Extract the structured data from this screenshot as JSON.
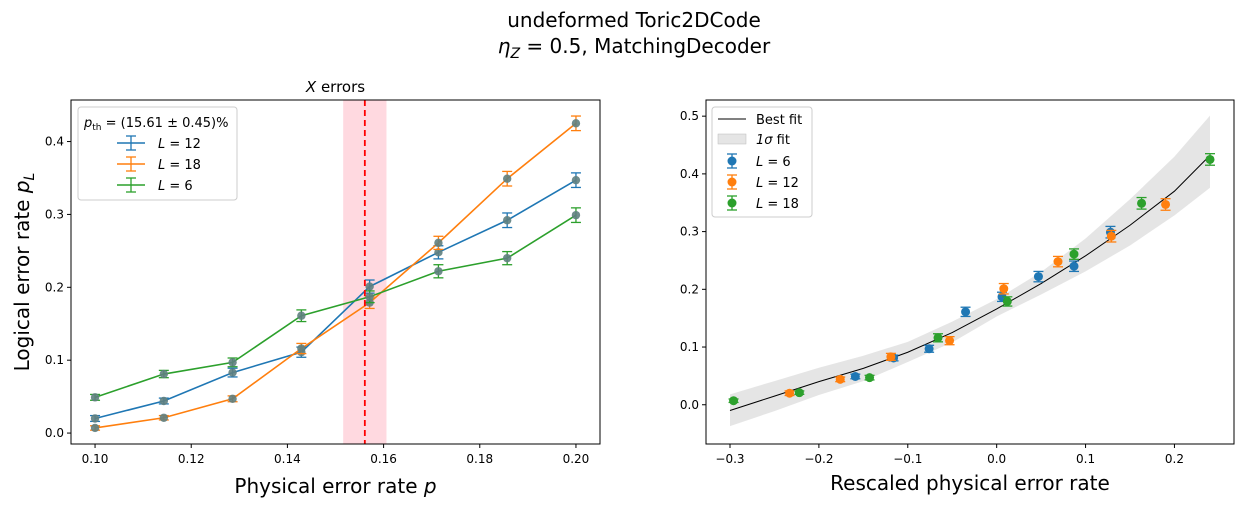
{
  "figure": {
    "title_line1": "undeformed Toric2DCode",
    "title_line2_symbol": "η",
    "title_line2_sub": "Z",
    "title_line2_rest": " = 0.5, MatchingDecoder"
  },
  "colors": {
    "blue": "#1f77b4",
    "orange": "#ff7f0e",
    "green": "#2ca02c",
    "threshold_line": "#ff0000",
    "threshold_band": "#ffc0cb",
    "fit_band": "#d3d3d3",
    "fit_line": "#000000"
  },
  "chart_data": [
    {
      "type": "line",
      "title_symbol": "X",
      "title_rest": " errors",
      "xlabel_text": "Physical error rate ",
      "xlabel_symbol": "p",
      "ylabel_text": "Logical error rate ",
      "ylabel_symbol": "p",
      "ylabel_sub": "L",
      "xlim": [
        0.095,
        0.205
      ],
      "ylim": [
        -0.015,
        0.457
      ],
      "xticks": [
        0.1,
        0.12,
        0.14,
        0.16,
        0.18,
        0.2
      ],
      "xtick_labels": [
        "0.10",
        "0.12",
        "0.14",
        "0.16",
        "0.18",
        "0.20"
      ],
      "yticks": [
        0.0,
        0.1,
        0.2,
        0.3,
        0.4
      ],
      "ytick_labels": [
        "0.0",
        "0.1",
        "0.2",
        "0.3",
        "0.4"
      ],
      "legend_position": "top-left",
      "legend_title": {
        "p": "p",
        "sub": "th",
        "rest": " = (15.61 ± 0.45)%"
      },
      "threshold": {
        "value": 0.1561,
        "lower": 0.1516,
        "upper": 0.1606
      },
      "x": [
        0.1,
        0.1143,
        0.1286,
        0.1429,
        0.1571,
        0.1714,
        0.1857,
        0.2
      ],
      "series": [
        {
          "name": "L = 12",
          "name_symbol": "L",
          "name_rest": " = 12",
          "color": "blue",
          "y": [
            0.02,
            0.044,
            0.083,
            0.111,
            0.201,
            0.248,
            0.292,
            0.347
          ],
          "err": [
            0.004,
            0.004,
            0.006,
            0.007,
            0.009,
            0.009,
            0.01,
            0.01
          ]
        },
        {
          "name": "L = 18",
          "name_symbol": "L",
          "name_rest": " = 18",
          "color": "orange",
          "y": [
            0.007,
            0.021,
            0.047,
            0.116,
            0.179,
            0.261,
            0.349,
            0.425
          ],
          "err": [
            0.003,
            0.003,
            0.004,
            0.007,
            0.008,
            0.009,
            0.01,
            0.01
          ]
        },
        {
          "name": "L = 6",
          "name_symbol": "L",
          "name_rest": " = 6",
          "color": "green",
          "y": [
            0.049,
            0.081,
            0.097,
            0.161,
            0.187,
            0.222,
            0.24,
            0.299
          ],
          "err": [
            0.004,
            0.005,
            0.006,
            0.008,
            0.008,
            0.009,
            0.009,
            0.01
          ]
        }
      ]
    },
    {
      "type": "scatter",
      "xlabel": "Rescaled physical error rate",
      "xlim": [
        -0.327,
        0.267
      ],
      "ylim": [
        -0.068,
        0.528
      ],
      "xticks": [
        -0.3,
        -0.2,
        -0.1,
        0.0,
        0.1,
        0.2
      ],
      "xtick_labels": [
        "−0.3",
        "−0.2",
        "−0.1",
        "0.0",
        "0.1",
        "0.2"
      ],
      "yticks": [
        0.0,
        0.1,
        0.2,
        0.3,
        0.4,
        0.5
      ],
      "ytick_labels": [
        "0.0",
        "0.1",
        "0.2",
        "0.3",
        "0.4",
        "0.5"
      ],
      "legend_position": "top-left",
      "fit_label": "Best fit",
      "band_label_symbol": "1σ",
      "band_label_rest": " fit",
      "fit": {
        "x": [
          -0.3,
          -0.25,
          -0.2,
          -0.15,
          -0.1,
          -0.05,
          0.0,
          0.05,
          0.1,
          0.15,
          0.2,
          0.24
        ],
        "y": [
          -0.01,
          0.015,
          0.04,
          0.063,
          0.091,
          0.125,
          0.166,
          0.21,
          0.258,
          0.311,
          0.37,
          0.432
        ],
        "lower": [
          -0.037,
          -0.011,
          0.017,
          0.041,
          0.074,
          0.108,
          0.153,
          0.191,
          0.231,
          0.276,
          0.328,
          0.376
        ],
        "upper": [
          0.018,
          0.041,
          0.064,
          0.085,
          0.109,
          0.144,
          0.183,
          0.23,
          0.288,
          0.356,
          0.43,
          0.501
        ]
      },
      "series": [
        {
          "name": "L = 6",
          "name_symbol": "L",
          "name_rest": " = 6",
          "color": "blue",
          "x": [
            -0.159,
            -0.116,
            -0.076,
            -0.035,
            0.006,
            0.047,
            0.087,
            0.128
          ],
          "y": [
            0.049,
            0.081,
            0.097,
            0.161,
            0.187,
            0.222,
            0.24,
            0.299
          ],
          "err": [
            0.004,
            0.005,
            0.006,
            0.008,
            0.008,
            0.009,
            0.009,
            0.01
          ]
        },
        {
          "name": "L = 12",
          "name_symbol": "L",
          "name_rest": " = 12",
          "color": "orange",
          "x": [
            -0.233,
            -0.176,
            -0.119,
            -0.053,
            0.008,
            0.069,
            0.129,
            0.19
          ],
          "y": [
            0.02,
            0.044,
            0.083,
            0.111,
            0.201,
            0.248,
            0.292,
            0.347
          ],
          "err": [
            0.004,
            0.004,
            0.006,
            0.007,
            0.009,
            0.009,
            0.01,
            0.01
          ]
        },
        {
          "name": "L = 18",
          "name_symbol": "L",
          "name_rest": " = 18",
          "color": "green",
          "x": [
            -0.296,
            -0.222,
            -0.143,
            -0.066,
            0.012,
            0.087,
            0.163,
            0.24
          ],
          "y": [
            0.007,
            0.021,
            0.047,
            0.116,
            0.179,
            0.261,
            0.349,
            0.425
          ],
          "err": [
            0.003,
            0.003,
            0.004,
            0.007,
            0.008,
            0.009,
            0.01,
            0.01
          ]
        }
      ]
    }
  ]
}
